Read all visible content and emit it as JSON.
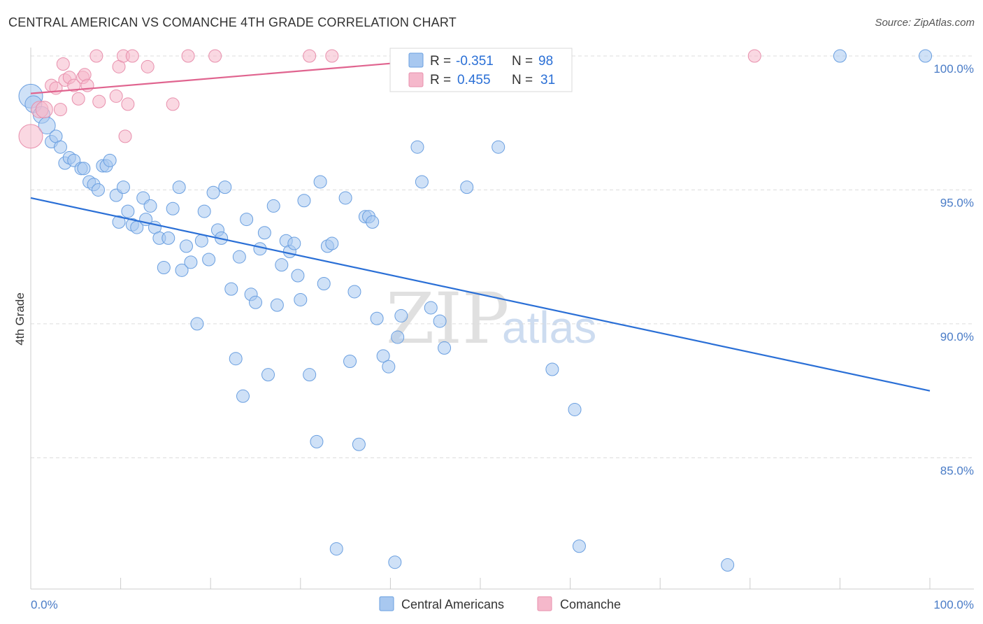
{
  "header": {
    "title": "CENTRAL AMERICAN VS COMANCHE 4TH GRADE CORRELATION CHART",
    "source": "Source: ZipAtlas.com"
  },
  "watermark": {
    "zip": "ZIP",
    "atlas": "atlas"
  },
  "chart_data": {
    "type": "scatter",
    "ylabel": "4th Grade",
    "xlim": [
      0,
      100
    ],
    "ylim": [
      80.0,
      100.0
    ],
    "x_tick_labels": [
      "0.0%",
      "100.0%"
    ],
    "y_ticks": [
      {
        "value": 100,
        "label": "100.0%"
      },
      {
        "value": 95,
        "label": "95.0%"
      },
      {
        "value": 90,
        "label": "90.0%"
      },
      {
        "value": 85,
        "label": "85.0%"
      }
    ],
    "grid": true,
    "legend_position": "top-center",
    "stats": [
      {
        "r_label": "R =",
        "r_value": "-0.351",
        "n_label": "N =",
        "n_value": "98",
        "color": "#a8c8f0"
      },
      {
        "r_label": "R =",
        "r_value": "0.455",
        "n_label": "N =",
        "n_value": "31",
        "color": "#f5b8cb"
      }
    ],
    "series": [
      {
        "name": "Central Americans",
        "color": "#a8c8f0",
        "stroke": "#6a9fe0",
        "line_color": "#2a6fd6",
        "trend": {
          "x": [
            0,
            100
          ],
          "y": [
            94.7,
            87.5
          ]
        },
        "points": [
          [
            0.0,
            98.5
          ],
          [
            0.3,
            98.2
          ],
          [
            1.2,
            97.8
          ],
          [
            1.8,
            97.4
          ],
          [
            2.3,
            96.8
          ],
          [
            2.8,
            97.0
          ],
          [
            3.3,
            96.6
          ],
          [
            3.8,
            96.0
          ],
          [
            4.3,
            96.2
          ],
          [
            4.8,
            96.1
          ],
          [
            5.6,
            95.8
          ],
          [
            5.9,
            95.8
          ],
          [
            6.5,
            95.3
          ],
          [
            7.0,
            95.2
          ],
          [
            7.5,
            95.0
          ],
          [
            8.0,
            95.9
          ],
          [
            8.4,
            95.9
          ],
          [
            8.8,
            96.1
          ],
          [
            9.5,
            94.8
          ],
          [
            9.8,
            93.8
          ],
          [
            10.3,
            95.1
          ],
          [
            10.8,
            94.2
          ],
          [
            11.3,
            93.7
          ],
          [
            11.8,
            93.6
          ],
          [
            12.5,
            94.7
          ],
          [
            12.8,
            93.9
          ],
          [
            13.3,
            94.4
          ],
          [
            13.8,
            93.6
          ],
          [
            14.3,
            93.2
          ],
          [
            14.8,
            92.1
          ],
          [
            15.3,
            93.2
          ],
          [
            15.8,
            94.3
          ],
          [
            16.5,
            95.1
          ],
          [
            16.8,
            92.0
          ],
          [
            17.3,
            92.9
          ],
          [
            17.8,
            92.3
          ],
          [
            18.5,
            90.0
          ],
          [
            19.0,
            93.1
          ],
          [
            19.3,
            94.2
          ],
          [
            19.8,
            92.4
          ],
          [
            20.3,
            94.9
          ],
          [
            20.8,
            93.5
          ],
          [
            21.2,
            93.2
          ],
          [
            21.6,
            95.1
          ],
          [
            22.3,
            91.3
          ],
          [
            22.8,
            88.7
          ],
          [
            23.2,
            92.5
          ],
          [
            23.6,
            87.3
          ],
          [
            24.0,
            93.9
          ],
          [
            24.5,
            91.1
          ],
          [
            25.0,
            90.8
          ],
          [
            25.5,
            92.8
          ],
          [
            26.0,
            93.4
          ],
          [
            26.4,
            88.1
          ],
          [
            27.0,
            94.4
          ],
          [
            27.4,
            90.7
          ],
          [
            27.9,
            92.2
          ],
          [
            28.4,
            93.1
          ],
          [
            28.8,
            92.7
          ],
          [
            29.3,
            93.0
          ],
          [
            29.7,
            91.8
          ],
          [
            30.0,
            90.9
          ],
          [
            30.4,
            94.6
          ],
          [
            31.0,
            88.1
          ],
          [
            31.8,
            85.6
          ],
          [
            32.2,
            95.3
          ],
          [
            32.6,
            91.5
          ],
          [
            33.0,
            92.9
          ],
          [
            33.5,
            93.0
          ],
          [
            34.0,
            81.6
          ],
          [
            35.0,
            94.7
          ],
          [
            35.5,
            88.6
          ],
          [
            36.0,
            91.2
          ],
          [
            36.5,
            85.5
          ],
          [
            37.2,
            94.0
          ],
          [
            37.6,
            94.0
          ],
          [
            38.0,
            93.8
          ],
          [
            38.5,
            90.2
          ],
          [
            39.2,
            88.8
          ],
          [
            39.8,
            88.4
          ],
          [
            40.5,
            81.1
          ],
          [
            40.8,
            89.5
          ],
          [
            41.2,
            90.3
          ],
          [
            42.0,
            100.0
          ],
          [
            43.0,
            96.6
          ],
          [
            43.5,
            95.3
          ],
          [
            44.5,
            90.6
          ],
          [
            45.5,
            90.1
          ],
          [
            46.0,
            89.1
          ],
          [
            48.0,
            100.0
          ],
          [
            48.5,
            95.1
          ],
          [
            52.0,
            96.6
          ],
          [
            58.0,
            88.3
          ],
          [
            60.5,
            86.8
          ],
          [
            61.0,
            81.7
          ],
          [
            77.5,
            81.0
          ],
          [
            90.0,
            100.0
          ],
          [
            99.5,
            100.0
          ]
        ]
      },
      {
        "name": "Comanche",
        "color": "#f5b8cb",
        "stroke": "#e890ad",
        "line_color": "#e0648f",
        "trend": {
          "x": [
            0,
            50
          ],
          "y": [
            98.6,
            100.0
          ]
        },
        "points": [
          [
            0.0,
            97.0
          ],
          [
            1.0,
            98.0
          ],
          [
            1.5,
            98.0
          ],
          [
            2.3,
            98.9
          ],
          [
            2.8,
            98.8
          ],
          [
            3.3,
            98.0
          ],
          [
            3.6,
            99.7
          ],
          [
            3.8,
            99.1
          ],
          [
            4.3,
            99.2
          ],
          [
            4.8,
            98.9
          ],
          [
            5.3,
            98.4
          ],
          [
            5.8,
            99.2
          ],
          [
            6.0,
            99.3
          ],
          [
            6.3,
            98.9
          ],
          [
            7.3,
            100.0
          ],
          [
            7.6,
            98.3
          ],
          [
            9.5,
            98.5
          ],
          [
            9.8,
            99.6
          ],
          [
            10.3,
            100.0
          ],
          [
            10.5,
            97.0
          ],
          [
            10.8,
            98.2
          ],
          [
            11.3,
            100.0
          ],
          [
            13.0,
            99.6
          ],
          [
            15.8,
            98.2
          ],
          [
            17.5,
            100.0
          ],
          [
            20.5,
            100.0
          ],
          [
            31.0,
            100.0
          ],
          [
            33.5,
            100.0
          ],
          [
            46.0,
            100.0
          ],
          [
            48.0,
            100.0
          ],
          [
            80.5,
            100.0
          ]
        ]
      }
    ]
  }
}
